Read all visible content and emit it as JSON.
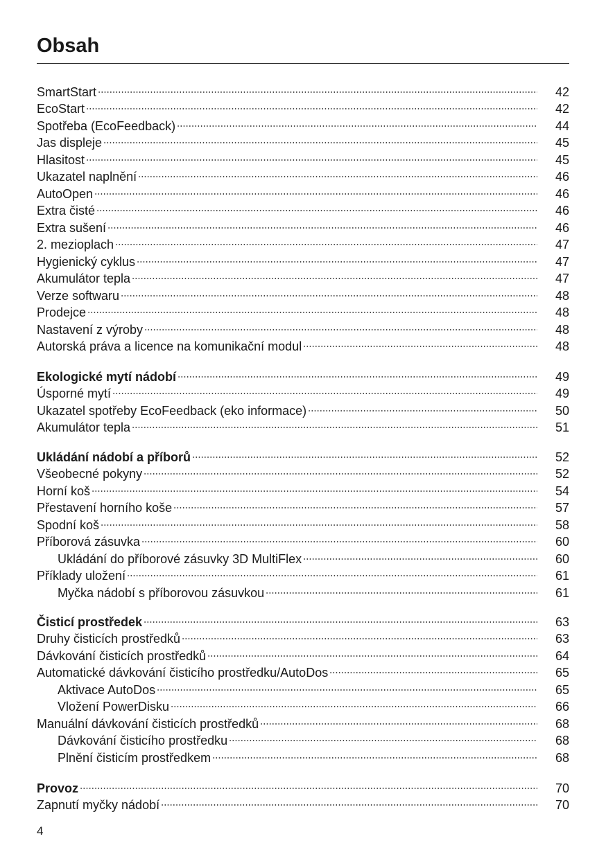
{
  "title": "Obsah",
  "page_number": "4",
  "groups": [
    {
      "entries": [
        {
          "label": "SmartStart",
          "page": "42"
        },
        {
          "label": "EcoStart",
          "page": "42"
        },
        {
          "label": "Spotřeba (EcoFeedback)",
          "page": "44"
        },
        {
          "label": "Jas displeje",
          "page": "45"
        },
        {
          "label": "Hlasitost",
          "page": "45"
        },
        {
          "label": "Ukazatel naplnění",
          "page": "46"
        },
        {
          "label": "AutoOpen",
          "page": "46"
        },
        {
          "label": "Extra čisté",
          "page": "46"
        },
        {
          "label": "Extra sušení",
          "page": "46"
        },
        {
          "label": "2. mezioplach",
          "page": "47"
        },
        {
          "label": "Hygienický cyklus",
          "page": "47"
        },
        {
          "label": "Akumulátor tepla",
          "page": "47"
        },
        {
          "label": "Verze softwaru",
          "page": "48"
        },
        {
          "label": "Prodejce",
          "page": "48"
        },
        {
          "label": "Nastavení z výroby",
          "page": "48"
        },
        {
          "label": "Autorská práva a licence na komunikační modul",
          "page": "48"
        }
      ]
    },
    {
      "entries": [
        {
          "label": "Ekologické mytí nádobí",
          "page": "49",
          "level": "heading"
        },
        {
          "label": "Úsporné mytí",
          "page": "49"
        },
        {
          "label": "Ukazatel spotřeby EcoFeedback (eko informace)",
          "page": "50"
        },
        {
          "label": "Akumulátor tepla",
          "page": "51"
        }
      ]
    },
    {
      "entries": [
        {
          "label": "Ukládání nádobí a příborů",
          "page": "52",
          "level": "heading"
        },
        {
          "label": "Všeobecné pokyny",
          "page": "52"
        },
        {
          "label": "Horní koš",
          "page": "54"
        },
        {
          "label": "Přestavení horního koše",
          "page": "57"
        },
        {
          "label": "Spodní koš",
          "page": "58"
        },
        {
          "label": "Příborová zásuvka",
          "page": "60"
        },
        {
          "label": "Ukládání do příborové zásuvky 3D MultiFlex",
          "page": "60",
          "level": "sub"
        },
        {
          "label": "Příklady uložení",
          "page": "61"
        },
        {
          "label": "Myčka nádobí s příborovou zásuvkou",
          "page": "61",
          "level": "sub"
        }
      ]
    },
    {
      "entries": [
        {
          "label": "Čisticí prostředek",
          "page": "63",
          "level": "heading"
        },
        {
          "label": "Druhy čisticích prostředků",
          "page": "63"
        },
        {
          "label": "Dávkování čisticích prostředků",
          "page": "64"
        },
        {
          "label": "Automatické dávkování čisticího prostředku/AutoDos",
          "page": "65"
        },
        {
          "label": "Aktivace AutoDos",
          "page": "65",
          "level": "sub"
        },
        {
          "label": "Vložení PowerDisku",
          "page": "66",
          "level": "sub"
        },
        {
          "label": "Manuální dávkování čisticích prostředků",
          "page": "68"
        },
        {
          "label": "Dávkování čisticího prostředku",
          "page": "68",
          "level": "sub"
        },
        {
          "label": "Plnění čisticím prostředkem",
          "page": "68",
          "level": "sub"
        }
      ]
    },
    {
      "entries": [
        {
          "label": "Provoz",
          "page": "70",
          "level": "heading"
        },
        {
          "label": "Zapnutí myčky nádobí",
          "page": "70"
        }
      ]
    }
  ]
}
